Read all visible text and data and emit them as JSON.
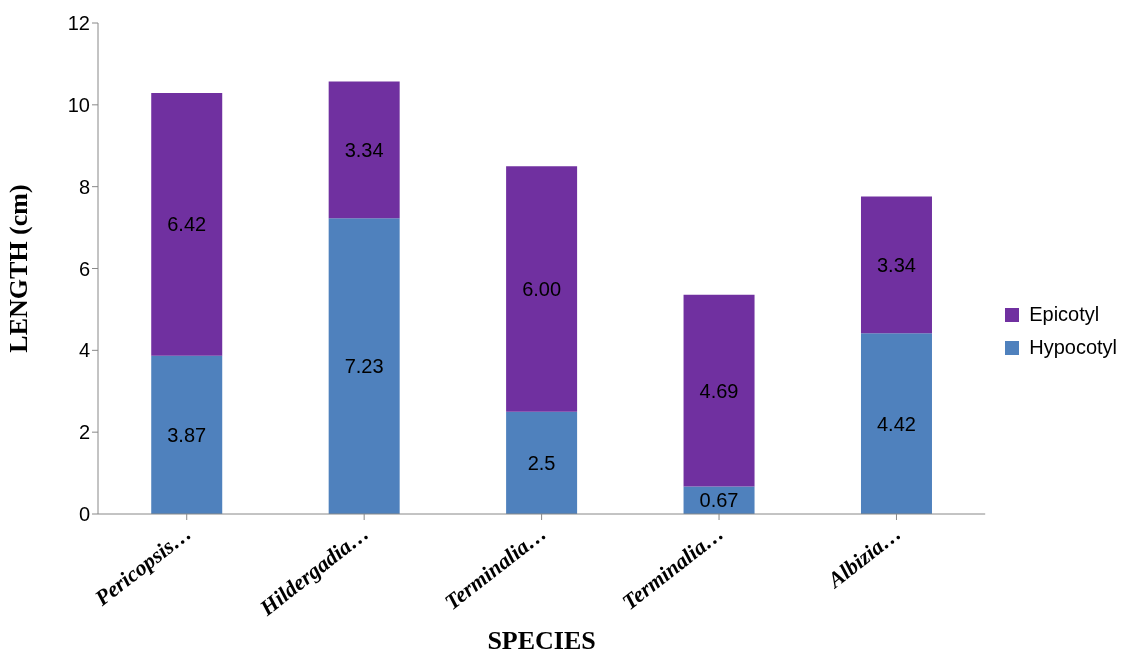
{
  "chart_data": {
    "type": "bar",
    "stacked": true,
    "xlabel": "SPECIES",
    "ylabel": "LENGTH (cm)",
    "categories": [
      "Pericopsis…",
      "Hildergadia…",
      "Terminalia…",
      "Terminalia…",
      "Albizia…"
    ],
    "series": [
      {
        "name": "Hypocotyl",
        "color": "#4f81bd",
        "values": [
          3.87,
          7.23,
          2.5,
          0.67,
          4.42
        ],
        "value_labels": [
          "3.87",
          "7.23",
          "2.5",
          "0.67",
          "4.42"
        ]
      },
      {
        "name": "Epicotyl",
        "color": "#7030a0",
        "values": [
          6.42,
          3.34,
          6.0,
          4.69,
          3.34
        ],
        "value_labels": [
          "6.42",
          "3.34",
          "6.00",
          "4.69",
          "3.34"
        ]
      }
    ],
    "ylim": [
      0,
      12
    ],
    "yticks": [
      0,
      2,
      4,
      6,
      8,
      10,
      12
    ],
    "grid": false,
    "legend": "right"
  }
}
